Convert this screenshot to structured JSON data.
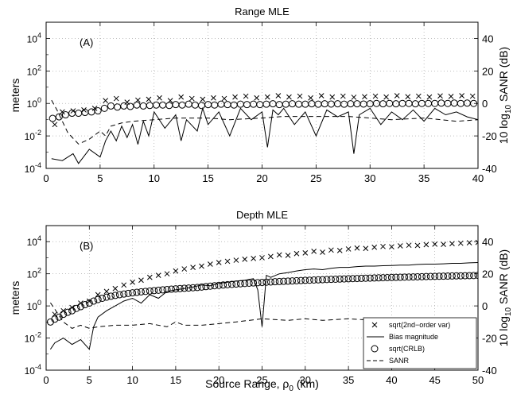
{
  "chart_data": [
    {
      "type": "line",
      "title": "Range MLE",
      "panel_label": "(A)",
      "xlabel": "",
      "ylabel": "meters",
      "ylabel_right": "10 log10 SANR (dB)",
      "xlim": [
        0,
        40
      ],
      "ylim": [
        0.0001,
        100000
      ],
      "yscale": "log",
      "ylim_right": [
        -40,
        50
      ],
      "xticks": [
        "0",
        "5",
        "10",
        "15",
        "20",
        "25",
        "30",
        "35",
        "40"
      ],
      "yticks_left": [
        {
          "base": "10",
          "exp": "-4"
        },
        {
          "base": "10",
          "exp": "-2"
        },
        {
          "base": "10",
          "exp": "0"
        },
        {
          "base": "10",
          "exp": "2"
        },
        {
          "base": "10",
          "exp": "4"
        }
      ],
      "yticks_right": [
        "-40",
        "-20",
        "0",
        "20",
        "40"
      ],
      "grid": true,
      "series": [
        {
          "key": "var",
          "style": "x-markers",
          "x": [
            0.8,
            1.5,
            2.5,
            3.5,
            4.5,
            5.5,
            6.5,
            7.5,
            8.5,
            9.5,
            10.5,
            11.5,
            12.5,
            13.5,
            14.5,
            15.5,
            16.5,
            17.5,
            18.5,
            19.5,
            20.5,
            21.5,
            22.5,
            23.5,
            24.5,
            25.5,
            26.5,
            27.5,
            28.5,
            29.5,
            30.5,
            31.5,
            32.5,
            33.5,
            34.5,
            35.5,
            36.5,
            37.5,
            38.5,
            39.5
          ],
          "y": [
            0.05,
            0.3,
            0.35,
            0.4,
            0.5,
            1.5,
            2.0,
            1.2,
            1.6,
            1.8,
            2.2,
            1.5,
            2.5,
            2.0,
            1.8,
            2.2,
            2.0,
            2.5,
            2.8,
            2.2,
            2.5,
            3.0,
            2.5,
            2.8,
            2.2,
            3.0,
            2.5,
            2.8,
            2.4,
            2.6,
            2.8,
            2.5,
            3.0,
            2.6,
            2.8,
            2.5,
            2.9,
            2.7,
            3.0,
            2.8
          ]
        },
        {
          "key": "bias",
          "style": "solid",
          "x": [
            0.5,
            1.5,
            2.5,
            3,
            4,
            5,
            5.5,
            6,
            6.5,
            7,
            7.5,
            8,
            8.5,
            9,
            9.5,
            10,
            11,
            12,
            12.5,
            13,
            14,
            14.5,
            15,
            16,
            17,
            18,
            19,
            20,
            20.5,
            21,
            21.5,
            22,
            23,
            24,
            25,
            26,
            27,
            28,
            28.5,
            29,
            30,
            31,
            32,
            33,
            34,
            35,
            36,
            37,
            38,
            39,
            40
          ],
          "y": [
            0.0004,
            0.0003,
            0.0008,
            0.0002,
            0.0015,
            0.0005,
            0.005,
            0.02,
            0.005,
            0.04,
            0.008,
            0.05,
            0.003,
            0.08,
            0.01,
            0.3,
            0.03,
            0.2,
            0.005,
            0.1,
            0.02,
            0.5,
            0.05,
            0.3,
            0.01,
            0.5,
            0.1,
            0.3,
            0.002,
            0.4,
            0.2,
            0.5,
            0.05,
            0.3,
            0.01,
            0.4,
            0.15,
            0.3,
            0.0008,
            0.2,
            0.5,
            0.05,
            0.3,
            0.1,
            0.4,
            0.08,
            0.5,
            0.2,
            0.3,
            0.15,
            0.1
          ]
        },
        {
          "key": "crlb",
          "style": "o-markers",
          "x": [
            0.6,
            1.2,
            1.8,
            2.4,
            3.0,
            3.6,
            4.2,
            4.8,
            5.4,
            6.0,
            6.6,
            7.2,
            7.8,
            8.4,
            9.0,
            9.6,
            10.2,
            10.8,
            11.4,
            12.0,
            12.6,
            13.2,
            13.8,
            14.4,
            15.0,
            15.6,
            16.2,
            16.8,
            17.4,
            18.0,
            18.6,
            19.2,
            19.8,
            20.4,
            21.0,
            21.6,
            22.2,
            22.8,
            23.4,
            24.0,
            24.6,
            25.2,
            25.8,
            26.4,
            27.0,
            27.6,
            28.2,
            28.8,
            29.4,
            30.0,
            30.6,
            31.2,
            31.8,
            32.4,
            33.0,
            33.6,
            34.2,
            34.8,
            35.4,
            36.0,
            36.6,
            37.2,
            37.8,
            38.4,
            39.0,
            39.6
          ],
          "y": [
            0.12,
            0.15,
            0.2,
            0.25,
            0.25,
            0.28,
            0.3,
            0.35,
            0.5,
            0.7,
            0.6,
            0.7,
            0.65,
            0.8,
            0.7,
            0.75,
            0.8,
            0.8,
            0.75,
            0.85,
            0.8,
            0.9,
            0.8,
            0.75,
            0.85,
            0.8,
            0.9,
            0.85,
            0.8,
            0.9,
            0.85,
            0.9,
            0.85,
            0.9,
            0.95,
            0.85,
            0.9,
            0.95,
            0.9,
            0.9,
            0.95,
            0.9,
            0.95,
            0.92,
            0.95,
            0.9,
            0.95,
            0.95,
            0.92,
            0.95,
            1.0,
            0.95,
            1.0,
            0.95,
            1.0,
            1.0,
            0.95,
            1.0,
            1.0,
            1.0,
            1.05,
            1.0,
            1.05,
            1.0,
            1.05,
            1.0
          ]
        },
        {
          "key": "sanr",
          "style": "dashed",
          "axis": "right",
          "x": [
            0.5,
            1,
            2,
            3,
            4,
            5,
            5.5,
            6,
            7,
            8,
            10,
            12,
            15,
            17,
            20,
            22,
            25,
            28,
            30,
            32,
            35,
            38,
            40
          ],
          "y": [
            2,
            -4,
            -18,
            -25,
            -22,
            -17,
            -20,
            -14,
            -12,
            -11,
            -10,
            -9,
            -9,
            -10,
            -9,
            -8,
            -8,
            -8,
            -9,
            -10,
            -9,
            -11,
            -10
          ]
        }
      ]
    },
    {
      "type": "line",
      "title": "Depth MLE",
      "panel_label": "(B)",
      "xlabel": "Source Range, ρ0 (km)",
      "ylabel": "meters",
      "ylabel_right": "10 log10 SANR (dB)",
      "xlim": [
        0,
        50
      ],
      "ylim": [
        0.0001,
        100000
      ],
      "yscale": "log",
      "ylim_right": [
        -40,
        50
      ],
      "xticks": [
        "0",
        "5",
        "10",
        "15",
        "20",
        "25",
        "30",
        "35",
        "40",
        "45",
        "50"
      ],
      "yticks_left": [
        {
          "base": "10",
          "exp": "-4"
        },
        {
          "base": "10",
          "exp": "-2"
        },
        {
          "base": "10",
          "exp": "0"
        },
        {
          "base": "10",
          "exp": "2"
        },
        {
          "base": "10",
          "exp": "4"
        }
      ],
      "yticks_right": [
        "-40",
        "-20",
        "0",
        "20",
        "40"
      ],
      "grid": true,
      "legend_position": "bottom-right",
      "series": [
        {
          "key": "var",
          "name": "sqrt(2nd−order var)",
          "style": "x-markers",
          "x": [
            1,
            2,
            3,
            4,
            5,
            6,
            7,
            8,
            9,
            10,
            11,
            12,
            13,
            14,
            15,
            16,
            17,
            18,
            19,
            20,
            21,
            22,
            23,
            24,
            25,
            26,
            27,
            28,
            29,
            30,
            31,
            32,
            33,
            34,
            35,
            36,
            37,
            38,
            39,
            40,
            41,
            42,
            43,
            44,
            45,
            46,
            47,
            48,
            49,
            50
          ],
          "y": [
            0.3,
            0.5,
            0.8,
            1.5,
            2,
            5,
            8,
            12,
            20,
            30,
            40,
            60,
            80,
            100,
            150,
            200,
            250,
            300,
            400,
            500,
            600,
            700,
            800,
            900,
            1000,
            1200,
            1500,
            1400,
            1800,
            2000,
            2500,
            2200,
            3000,
            2800,
            3500,
            4000,
            3800,
            4500,
            5000,
            4800,
            5500,
            6000,
            5800,
            6500,
            7000,
            6800,
            7500,
            8000,
            8500,
            9000
          ]
        },
        {
          "key": "bias",
          "name": "Bias magnitude",
          "style": "solid",
          "x": [
            0.5,
            1,
            2,
            3,
            4,
            5,
            5.5,
            6,
            7,
            8,
            9,
            10,
            11,
            12,
            13,
            14,
            15,
            16,
            17,
            18,
            19,
            20,
            21,
            22,
            23,
            24,
            24.5,
            25,
            25.5,
            26,
            27,
            28,
            29,
            30,
            31,
            32,
            33,
            34,
            35,
            36,
            37,
            38,
            39,
            40,
            41,
            42,
            43,
            44,
            45,
            46,
            47,
            48,
            49,
            50
          ],
          "y": [
            0.002,
            0.005,
            0.01,
            0.004,
            0.008,
            0.002,
            0.05,
            0.2,
            0.5,
            1,
            2,
            3,
            1.5,
            5,
            3,
            8,
            10,
            12,
            15,
            20,
            18,
            25,
            30,
            35,
            40,
            50,
            10,
            0.05,
            80,
            60,
            100,
            120,
            150,
            180,
            200,
            180,
            220,
            250,
            250,
            280,
            300,
            300,
            320,
            330,
            350,
            350,
            380,
            400,
            400,
            420,
            450,
            450,
            480,
            500
          ]
        },
        {
          "key": "crlb",
          "name": "sqrt(CRLB)",
          "style": "o-markers",
          "x": [
            0.5,
            1,
            1.5,
            2,
            2.5,
            3,
            3.5,
            4,
            4.5,
            5,
            5.5,
            6,
            6.5,
            7,
            7.5,
            8,
            8.5,
            9,
            9.5,
            10,
            10.5,
            11,
            11.5,
            12,
            12.5,
            13,
            13.5,
            14,
            14.5,
            15,
            15.5,
            16,
            16.5,
            17,
            17.5,
            18,
            18.5,
            19,
            19.5,
            20,
            20.5,
            21,
            21.5,
            22,
            22.5,
            23,
            23.5,
            24,
            24.5,
            25,
            25.5,
            26,
            26.5,
            27,
            27.5,
            28,
            28.5,
            29,
            29.5,
            30,
            30.5,
            31,
            31.5,
            32,
            32.5,
            33,
            33.5,
            34,
            34.5,
            35,
            35.5,
            36,
            36.5,
            37,
            37.5,
            38,
            38.5,
            39,
            39.5,
            40,
            40.5,
            41,
            41.5,
            42,
            42.5,
            43,
            43.5,
            44,
            44.5,
            45,
            45.5,
            46,
            46.5,
            47,
            47.5,
            48,
            48.5,
            49,
            49.5,
            50
          ],
          "y": [
            0.1,
            0.15,
            0.2,
            0.3,
            0.4,
            0.5,
            0.7,
            0.9,
            1.2,
            1.5,
            2,
            2.5,
            3,
            3.5,
            4,
            4.5,
            5,
            5.5,
            6,
            6.5,
            7,
            7.5,
            8,
            8.5,
            9,
            9.5,
            10,
            10.5,
            11,
            11.5,
            12,
            12.5,
            13,
            13.5,
            14,
            15,
            16,
            17,
            18,
            19,
            20,
            21,
            22,
            23,
            24,
            25,
            26,
            27,
            28,
            29,
            30,
            31,
            32,
            33,
            34,
            35,
            36,
            37,
            38,
            39,
            40,
            41,
            42,
            43,
            44,
            45,
            46,
            47,
            48,
            49,
            50,
            51,
            52,
            53,
            54,
            55,
            56,
            57,
            58,
            59,
            60,
            61,
            62,
            63,
            64,
            65,
            66,
            67,
            68,
            69,
            70,
            71,
            72,
            73,
            74,
            75,
            76,
            77,
            78,
            80
          ]
        },
        {
          "key": "sanr",
          "name": "SANR",
          "style": "dashed",
          "axis": "right",
          "x": [
            0.5,
            1,
            2,
            3,
            4,
            5,
            6,
            8,
            10,
            12,
            14,
            15,
            16,
            18,
            20,
            22,
            25,
            28,
            30,
            32,
            35,
            38,
            40,
            42,
            45,
            48,
            50
          ],
          "y": [
            2,
            -2,
            -10,
            -14,
            -12,
            -14,
            -13,
            -12,
            -12,
            -11,
            -13,
            -10,
            -12,
            -12,
            -11,
            -10,
            -8,
            -9,
            -8,
            -9,
            -8,
            -9,
            -8,
            -9,
            -10,
            -10,
            -10
          ]
        }
      ]
    }
  ]
}
